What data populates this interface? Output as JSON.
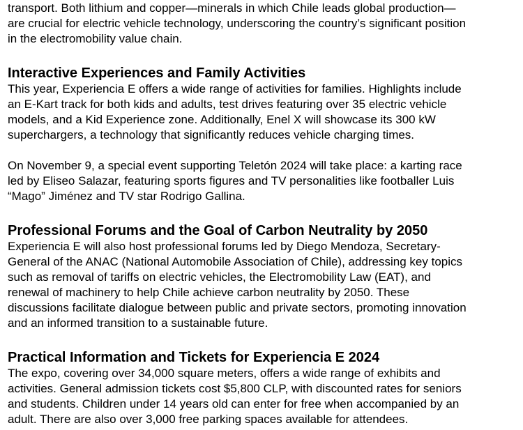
{
  "blocks": [
    {
      "type": "p",
      "lines": [
        "transport. Both lithium and copper—minerals in which Chile leads global production—",
        "are crucial for electric vehicle technology, underscoring the country’s significant position",
        "in the electromobility value chain."
      ]
    },
    {
      "type": "h",
      "text": "Interactive Experiences and Family Activities"
    },
    {
      "type": "p",
      "lines": [
        "This year, Experiencia E offers a wide range of activities for families. Highlights include",
        "an E-Kart track for both kids and adults, test drives featuring over 35 electric vehicle",
        "models, and a Kid Experience zone. Additionally, Enel X will showcase its 300 kW",
        "superchargers, a technology that significantly reduces vehicle charging times."
      ]
    },
    {
      "type": "p",
      "lines": [
        "On November 9, a special event supporting Teletón 2024 will take place: a karting race",
        "led by Eliseo Salazar, featuring sports figures and TV personalities like footballer Luis",
        "“Mago” Jiménez and TV star Rodrigo Gallina."
      ]
    },
    {
      "type": "h",
      "text": "Professional Forums and the Goal of Carbon Neutrality by 2050"
    },
    {
      "type": "p",
      "lines": [
        "Experiencia E will also host professional forums led by Diego Mendoza, Secretary-",
        "General of the ANAC (National Automobile Association of Chile), addressing key topics",
        "such as removal of tariffs on electric vehicles, the Electromobility Law (EAT), and",
        "renewal of machinery to help Chile achieve carbon neutrality by 2050. These",
        "discussions facilitate dialogue between public and private sectors, promoting innovation",
        "and an informed transition to a sustainable future."
      ]
    },
    {
      "type": "h",
      "text": "Practical Information and Tickets for Experiencia E 2024"
    },
    {
      "type": "p",
      "lines": [
        "The expo, covering over 34,000 square meters, offers a wide range of exhibits and",
        "activities. General admission tickets cost $5,800 CLP, with discounted rates for seniors",
        "and students. Children under 14 years old can enter for free when accompanied by an",
        "adult. There are also over 3,000 free parking spaces available for attendees."
      ]
    }
  ]
}
